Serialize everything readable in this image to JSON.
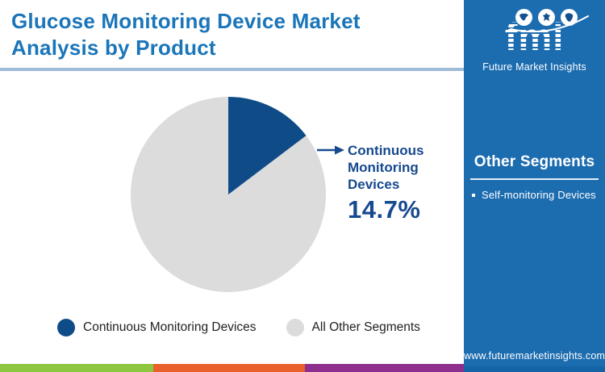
{
  "header": {
    "title_line1": "Glucose Monitoring Device Market",
    "title_line2": "Analysis by Product",
    "title_color": "#1b75b9"
  },
  "logo": {
    "acronym": "fmi",
    "tagline": "Future Market Insights"
  },
  "sidebar": {
    "background": "#1c6cb0",
    "heading": "Other Segments",
    "items": [
      "Self-monitoring Devices"
    ],
    "website": "www.futuremarketinsights.com"
  },
  "chart_data": {
    "type": "pie",
    "title": "Glucose Monitoring Device Market Analysis by Product",
    "slices": [
      {
        "label": "Continuous Monitoring Devices",
        "value": 14.7,
        "color": "#0e4b87"
      },
      {
        "label": "All Other Segments",
        "value": 85.3,
        "color": "#dcdcdd"
      }
    ],
    "start_angle_deg": 0,
    "callout": {
      "value_text": "14.7%",
      "color": "#17498f"
    },
    "legend_position": "bottom"
  },
  "footer_strip_colors": [
    "#8dc63f",
    "#e8612c",
    "#8e2e8d"
  ]
}
